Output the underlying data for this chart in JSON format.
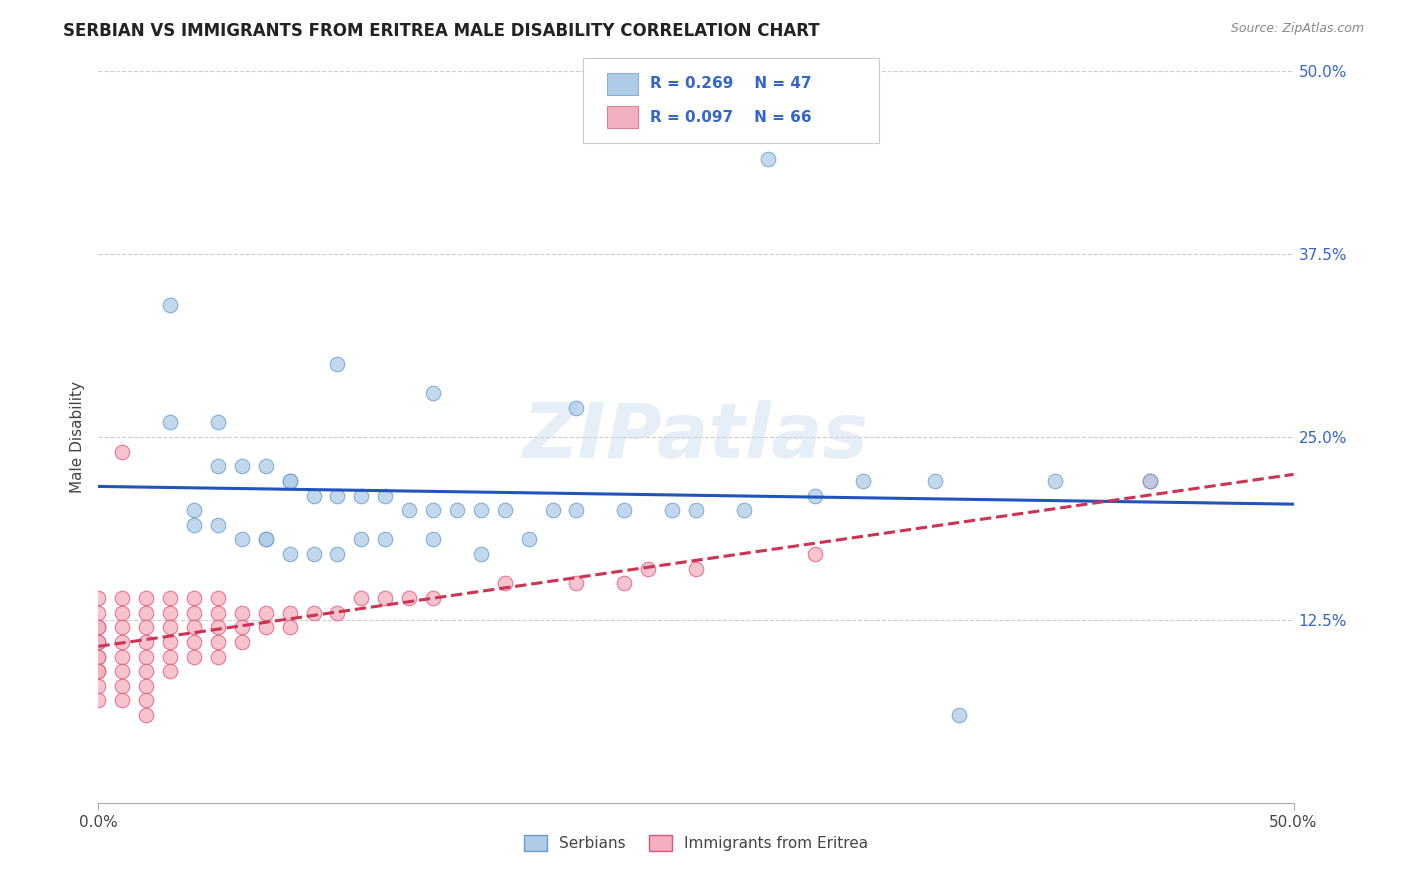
{
  "title": "SERBIAN VS IMMIGRANTS FROM ERITREA MALE DISABILITY CORRELATION CHART",
  "source_text": "Source: ZipAtlas.com",
  "ylabel": "Male Disability",
  "xlim": [
    0.0,
    0.5
  ],
  "ylim": [
    0.0,
    0.5
  ],
  "xtick_positions": [
    0.0,
    0.5
  ],
  "xtick_labels": [
    "0.0%",
    "50.0%"
  ],
  "ytick_positions": [
    0.125,
    0.25,
    0.375,
    0.5
  ],
  "ytick_labels": [
    "12.5%",
    "25.0%",
    "37.5%",
    "50.0%"
  ],
  "grid_color": "#cccccc",
  "background_color": "#ffffff",
  "serbian_color": "#aecce8",
  "eritrea_color": "#f4afc0",
  "serbian_edge_color": "#6699cc",
  "eritrea_edge_color": "#dd5577",
  "serbian_line_color": "#2255bb",
  "eritrea_line_color": "#cc3355",
  "legend_R_serbian": "R = 0.269",
  "legend_N_serbian": "N = 47",
  "legend_R_eritrea": "R = 0.097",
  "legend_N_eritrea": "N = 66",
  "legend_label_serbian": "Serbians",
  "legend_label_eritrea": "Immigrants from Eritrea",
  "watermark": "ZIPatlas",
  "serbian_x": [
    0.28,
    0.03,
    0.1,
    0.14,
    0.2,
    0.03,
    0.05,
    0.05,
    0.06,
    0.07,
    0.08,
    0.08,
    0.09,
    0.1,
    0.11,
    0.12,
    0.13,
    0.14,
    0.15,
    0.16,
    0.17,
    0.19,
    0.2,
    0.22,
    0.24,
    0.25,
    0.27,
    0.3,
    0.32,
    0.35,
    0.04,
    0.04,
    0.05,
    0.06,
    0.07,
    0.07,
    0.08,
    0.09,
    0.1,
    0.11,
    0.12,
    0.14,
    0.16,
    0.18,
    0.4,
    0.44,
    0.36
  ],
  "serbian_y": [
    0.44,
    0.34,
    0.3,
    0.28,
    0.27,
    0.26,
    0.26,
    0.23,
    0.23,
    0.23,
    0.22,
    0.22,
    0.21,
    0.21,
    0.21,
    0.21,
    0.2,
    0.2,
    0.2,
    0.2,
    0.2,
    0.2,
    0.2,
    0.2,
    0.2,
    0.2,
    0.2,
    0.21,
    0.22,
    0.22,
    0.2,
    0.19,
    0.19,
    0.18,
    0.18,
    0.18,
    0.17,
    0.17,
    0.17,
    0.18,
    0.18,
    0.18,
    0.17,
    0.18,
    0.22,
    0.22,
    0.06
  ],
  "eritrea_x": [
    0.0,
    0.0,
    0.0,
    0.0,
    0.0,
    0.0,
    0.0,
    0.0,
    0.0,
    0.0,
    0.0,
    0.0,
    0.01,
    0.01,
    0.01,
    0.01,
    0.01,
    0.01,
    0.01,
    0.01,
    0.02,
    0.02,
    0.02,
    0.02,
    0.02,
    0.02,
    0.02,
    0.02,
    0.02,
    0.03,
    0.03,
    0.03,
    0.03,
    0.03,
    0.03,
    0.04,
    0.04,
    0.04,
    0.04,
    0.04,
    0.05,
    0.05,
    0.05,
    0.05,
    0.05,
    0.06,
    0.06,
    0.06,
    0.07,
    0.07,
    0.08,
    0.08,
    0.09,
    0.1,
    0.11,
    0.12,
    0.13,
    0.14,
    0.17,
    0.2,
    0.22,
    0.23,
    0.25,
    0.3,
    0.01,
    0.44
  ],
  "eritrea_y": [
    0.14,
    0.13,
    0.12,
    0.12,
    0.11,
    0.11,
    0.1,
    0.1,
    0.09,
    0.09,
    0.08,
    0.07,
    0.14,
    0.13,
    0.12,
    0.11,
    0.1,
    0.09,
    0.08,
    0.07,
    0.14,
    0.13,
    0.12,
    0.11,
    0.1,
    0.09,
    0.08,
    0.07,
    0.06,
    0.14,
    0.13,
    0.12,
    0.11,
    0.1,
    0.09,
    0.14,
    0.13,
    0.12,
    0.11,
    0.1,
    0.14,
    0.13,
    0.12,
    0.11,
    0.1,
    0.13,
    0.12,
    0.11,
    0.13,
    0.12,
    0.13,
    0.12,
    0.13,
    0.13,
    0.14,
    0.14,
    0.14,
    0.14,
    0.15,
    0.15,
    0.15,
    0.16,
    0.16,
    0.17,
    0.24,
    0.22
  ]
}
